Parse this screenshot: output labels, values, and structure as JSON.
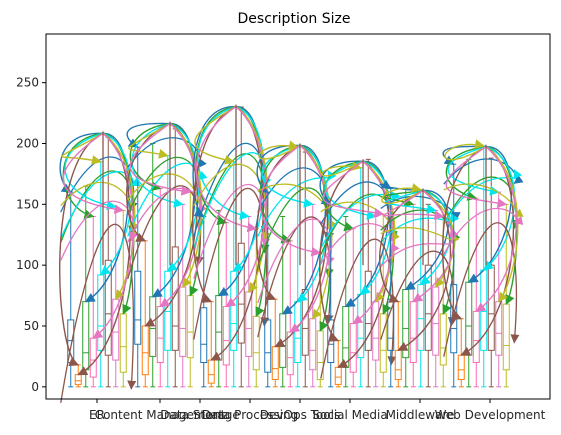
{
  "chart_data": {
    "type": "box",
    "title": "Description Size",
    "xlabel": "",
    "ylabel": "",
    "ylim": [
      -10,
      290
    ],
    "yticks": [
      0,
      50,
      100,
      150,
      200,
      250
    ],
    "categories": [
      "ER",
      "Content Management",
      "Data Storage",
      "Data Processing",
      "DevOps Tools",
      "Social Media",
      "Middleware",
      "Web Development"
    ],
    "series_colors": [
      "#1f77b4",
      "#ff7f0e",
      "#2ca02c",
      "#ff69b4",
      "#00e5ee",
      "#8c564b",
      "#e377c2",
      "#bcbd22"
    ],
    "arrow_colors": [
      "#1f77b4",
      "#2ca02c",
      "#00e5ee",
      "#8c564b",
      "#bcbd22",
      "#e377c2"
    ],
    "groups": [
      {
        "category": "ER",
        "boxes": [
          [
            0,
            20,
            38,
            55,
            160
          ],
          [
            0,
            2,
            5,
            10,
            18
          ],
          [
            0,
            14,
            28,
            70,
            165
          ],
          [
            0,
            8,
            22,
            40,
            140
          ],
          [
            0,
            30,
            50,
            92,
            185
          ],
          [
            0,
            26,
            60,
            104,
            205
          ],
          [
            0,
            22,
            45,
            72,
            148
          ],
          [
            0,
            12,
            33,
            60,
            145
          ]
        ],
        "arc_top": 210
      },
      {
        "category": "Content Management",
        "boxes": [
          [
            0,
            35,
            55,
            95,
            197
          ],
          [
            0,
            10,
            28,
            50,
            120
          ],
          [
            0,
            25,
            48,
            74,
            200
          ],
          [
            0,
            20,
            40,
            66,
            163
          ],
          [
            0,
            30,
            62,
            95,
            190
          ],
          [
            0,
            30,
            50,
            115,
            212
          ],
          [
            0,
            25,
            48,
            82,
            150
          ],
          [
            0,
            24,
            45,
            75,
            160
          ]
        ],
        "arc_top": 218
      },
      {
        "category": "Data Storage",
        "boxes": [
          [
            0,
            20,
            35,
            65,
            140
          ],
          [
            0,
            3,
            10,
            22,
            70
          ],
          [
            0,
            22,
            45,
            75,
            145
          ],
          [
            0,
            18,
            38,
            66,
            135
          ],
          [
            0,
            30,
            52,
            95,
            185
          ],
          [
            0,
            36,
            68,
            118,
            230
          ],
          [
            0,
            25,
            48,
            78,
            140
          ],
          [
            0,
            14,
            28,
            58,
            130
          ]
        ],
        "arc_top": 232
      },
      {
        "category": "Data Processing",
        "boxes": [
          [
            0,
            12,
            28,
            55,
            160
          ],
          [
            0,
            6,
            15,
            33,
            72
          ],
          [
            0,
            16,
            34,
            60,
            140
          ],
          [
            0,
            10,
            24,
            45,
            120
          ],
          [
            0,
            20,
            40,
            70,
            197
          ],
          [
            0,
            26,
            48,
            80,
            193
          ],
          [
            0,
            14,
            30,
            56,
            150
          ],
          [
            0,
            6,
            20,
            46,
            110
          ]
        ],
        "arc_top": 200
      },
      {
        "category": "DevOps Tools",
        "boxes": [
          [
            0,
            20,
            35,
            55,
            150
          ],
          [
            0,
            2,
            8,
            16,
            38
          ],
          [
            0,
            16,
            32,
            66,
            140
          ],
          [
            0,
            12,
            28,
            52,
            130
          ],
          [
            0,
            24,
            40,
            76,
            180
          ],
          [
            0,
            30,
            52,
            95,
            187
          ],
          [
            0,
            22,
            40,
            70,
            140
          ],
          [
            0,
            12,
            30,
            60,
            142
          ]
        ],
        "arc_top": 187
      },
      {
        "category": "Social Media",
        "boxes": [
          [
            0,
            30,
            40,
            72,
            163
          ],
          [
            0,
            6,
            14,
            30,
            70
          ],
          [
            0,
            24,
            48,
            80,
            163
          ],
          [
            0,
            20,
            40,
            70,
            150
          ],
          [
            0,
            30,
            56,
            84,
            162
          ],
          [
            0,
            30,
            60,
            100,
            150
          ],
          [
            0,
            26,
            52,
            82,
            145
          ],
          [
            0,
            18,
            32,
            60,
            140
          ]
        ],
        "arc_top": 163
      },
      {
        "category": "Middleware",
        "boxes": [
          [
            0,
            28,
            48,
            84,
            183
          ],
          [
            0,
            6,
            14,
            26,
            56
          ],
          [
            0,
            26,
            50,
            86,
            187
          ],
          [
            0,
            20,
            38,
            62,
            155
          ],
          [
            0,
            30,
            62,
            96,
            198
          ],
          [
            0,
            30,
            60,
            100,
            188
          ],
          [
            0,
            26,
            44,
            70,
            160
          ],
          [
            0,
            14,
            34,
            68,
            150
          ]
        ],
        "arc_top": 199
      },
      {
        "category": "Web Development",
        "boxes": [],
        "arc_top": 0
      }
    ]
  }
}
